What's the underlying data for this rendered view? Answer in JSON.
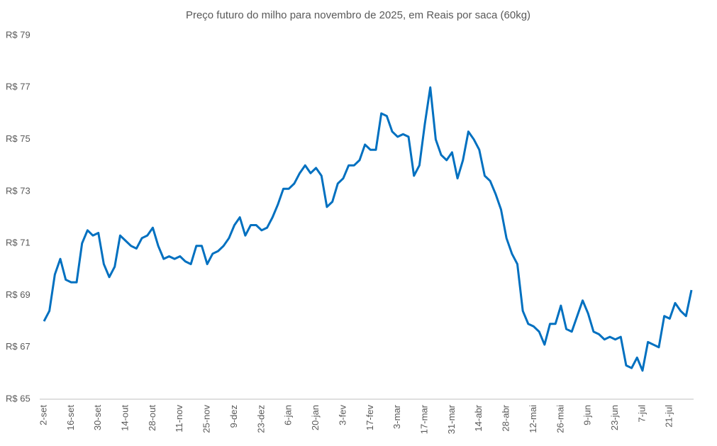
{
  "chart_data": {
    "type": "line",
    "title": "Preço futuro do milho para novembro de 2025, em Reais por saca (60kg)",
    "categories": [
      "2-set",
      null,
      null,
      null,
      null,
      "16-set",
      null,
      null,
      null,
      null,
      "30-set",
      null,
      null,
      null,
      null,
      "14-out",
      null,
      null,
      null,
      null,
      "28-out",
      null,
      null,
      null,
      null,
      "11-nov",
      null,
      null,
      null,
      null,
      "25-nov",
      null,
      null,
      null,
      null,
      "9-dez",
      null,
      null,
      null,
      null,
      "23-dez",
      null,
      null,
      null,
      null,
      "6-jan",
      null,
      null,
      null,
      null,
      "20-jan",
      null,
      null,
      null,
      null,
      "3-fev",
      null,
      null,
      null,
      null,
      "17-fev",
      null,
      null,
      null,
      null,
      "3-mar",
      null,
      null,
      null,
      null,
      "17-mar",
      null,
      null,
      null,
      null,
      "31-mar",
      null,
      null,
      null,
      null,
      "14-abr",
      null,
      null,
      null,
      null,
      "28-abr",
      null,
      null,
      null,
      null,
      "12-mai",
      null,
      null,
      null,
      null,
      "26-mai",
      null,
      null,
      null,
      null,
      "9-jun",
      null,
      null,
      null,
      null,
      "23-jun",
      null,
      null,
      null,
      null,
      "7-jul",
      null,
      null,
      null,
      null,
      "21-jul",
      null,
      null,
      null,
      null
    ],
    "values": [
      68.0,
      68.4,
      69.8,
      70.4,
      69.6,
      69.5,
      69.5,
      71.0,
      71.5,
      71.3,
      71.4,
      70.2,
      69.7,
      70.1,
      71.3,
      71.1,
      70.9,
      70.8,
      71.2,
      71.3,
      71.6,
      70.9,
      70.4,
      70.5,
      70.4,
      70.5,
      70.3,
      70.2,
      70.9,
      70.9,
      70.2,
      70.6,
      70.7,
      70.9,
      71.2,
      71.7,
      72.0,
      71.3,
      71.7,
      71.7,
      71.5,
      71.6,
      72.0,
      72.5,
      73.1,
      73.1,
      73.3,
      73.7,
      74.0,
      73.7,
      73.9,
      73.6,
      72.4,
      72.6,
      73.3,
      73.5,
      74.0,
      74.0,
      74.2,
      74.8,
      74.6,
      74.6,
      76.0,
      75.9,
      75.3,
      75.1,
      75.2,
      75.1,
      73.6,
      74.0,
      75.6,
      77.0,
      75.0,
      74.4,
      74.2,
      74.5,
      73.5,
      74.2,
      75.3,
      75.0,
      74.6,
      73.6,
      73.4,
      72.9,
      72.3,
      71.2,
      70.6,
      70.2,
      68.4,
      67.9,
      67.8,
      67.6,
      67.1,
      67.9,
      67.9,
      68.6,
      67.7,
      67.6,
      68.2,
      68.8,
      68.3,
      67.6,
      67.5,
      67.3,
      67.4,
      67.3,
      67.4,
      66.3,
      66.2,
      66.6,
      66.1,
      67.2,
      67.1,
      67.0,
      68.2,
      68.1,
      68.7,
      68.4,
      68.2,
      69.2
    ],
    "color": "#0070c0",
    "ylim": [
      65,
      79
    ],
    "yticks": [
      {
        "value": 65,
        "label": "R$ 65"
      },
      {
        "value": 67,
        "label": "R$ 67"
      },
      {
        "value": 69,
        "label": "R$ 69"
      },
      {
        "value": 71,
        "label": "R$ 71"
      },
      {
        "value": 73,
        "label": "R$ 73"
      },
      {
        "value": 75,
        "label": "R$ 75"
      },
      {
        "value": 77,
        "label": "R$ 77"
      },
      {
        "value": 79,
        "label": "R$ 79"
      }
    ],
    "grid": false
  }
}
